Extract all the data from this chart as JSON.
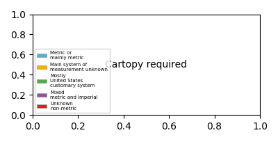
{
  "legend_entries": [
    {
      "label": "Metric or\nmainly metric",
      "color": "#4eb3d3"
    },
    {
      "label": "Main system of\nmeasurement unknown",
      "color": "#f0b400"
    },
    {
      "label": "Mostly\nUnited States\ncustomary system",
      "color": "#4daf4a"
    },
    {
      "label": "Mixed\nmetric and imperial",
      "color": "#984ea3"
    },
    {
      "label": "Unknown\nnon-metric",
      "color": "#e41a1c"
    }
  ],
  "background_color": "#ffffff",
  "ocean_color": "#ffffff",
  "land_default_color": "#4eb3d3",
  "border_color": "#ffffff",
  "globe_border_color": "#aaaaaa",
  "figsize": [
    4.0,
    2.04
  ],
  "dpi": 100
}
